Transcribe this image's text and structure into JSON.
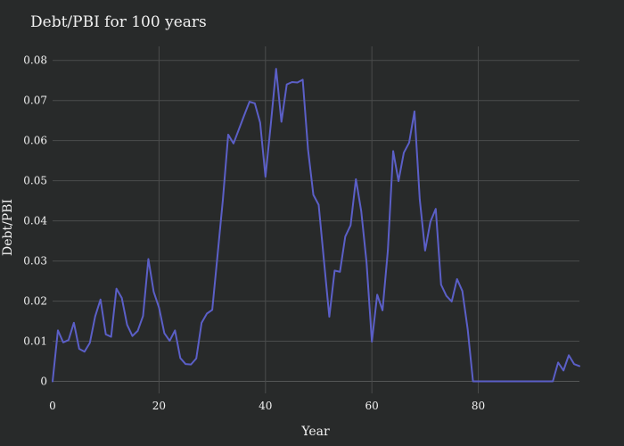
{
  "chart_data": {
    "type": "line",
    "title": "Debt/PBI for 100 years",
    "xlabel": "Year",
    "ylabel": "Debt/PBI",
    "xlim": [
      0,
      99
    ],
    "ylim": [
      -0.003,
      0.0835
    ],
    "x_ticks": [
      0,
      20,
      40,
      60,
      80
    ],
    "y_ticks": [
      0,
      0.01,
      0.02,
      0.03,
      0.04,
      0.05,
      0.06,
      0.07,
      0.08
    ],
    "y_tick_labels": [
      "0",
      "0.01",
      "0.02",
      "0.03",
      "0.04",
      "0.05",
      "0.06",
      "0.07",
      "0.08"
    ],
    "grid": true,
    "legend": "none",
    "colors": {
      "background": "#282a2a",
      "line": "#5b5fc7",
      "grid": "#4a4c4c",
      "text": "#f2f2f2"
    },
    "series": [
      {
        "values": [
          0,
          0.0127,
          0.0097,
          0.0103,
          0.0146,
          0.0081,
          0.0074,
          0.0096,
          0.0162,
          0.0204,
          0.0117,
          0.0111,
          0.0231,
          0.0208,
          0.0141,
          0.0113,
          0.0126,
          0.0163,
          0.0305,
          0.0223,
          0.0184,
          0.012,
          0.0101,
          0.0127,
          0.0058,
          0.0043,
          0.0042,
          0.0057,
          0.0146,
          0.0169,
          0.0178,
          0.0315,
          0.0453,
          0.0615,
          0.0593,
          0.0628,
          0.0663,
          0.0697,
          0.0693,
          0.0645,
          0.051,
          0.064,
          0.0779,
          0.0647,
          0.074,
          0.0746,
          0.0745,
          0.0752,
          0.0578,
          0.0465,
          0.044,
          0.03,
          0.0161,
          0.0276,
          0.0273,
          0.0361,
          0.0389,
          0.0504,
          0.0424,
          0.0296,
          0.0099,
          0.0216,
          0.0177,
          0.0326,
          0.0574,
          0.0499,
          0.057,
          0.0595,
          0.0673,
          0.0453,
          0.0326,
          0.0398,
          0.043,
          0.0241,
          0.0213,
          0.0199,
          0.0255,
          0.0225,
          0.013,
          0,
          0,
          0,
          0,
          0,
          0,
          0,
          0,
          0,
          0,
          0,
          0,
          0,
          0,
          0,
          0,
          0.0047,
          0.0027,
          0.0065,
          0.0043,
          0.0038
        ]
      }
    ]
  }
}
